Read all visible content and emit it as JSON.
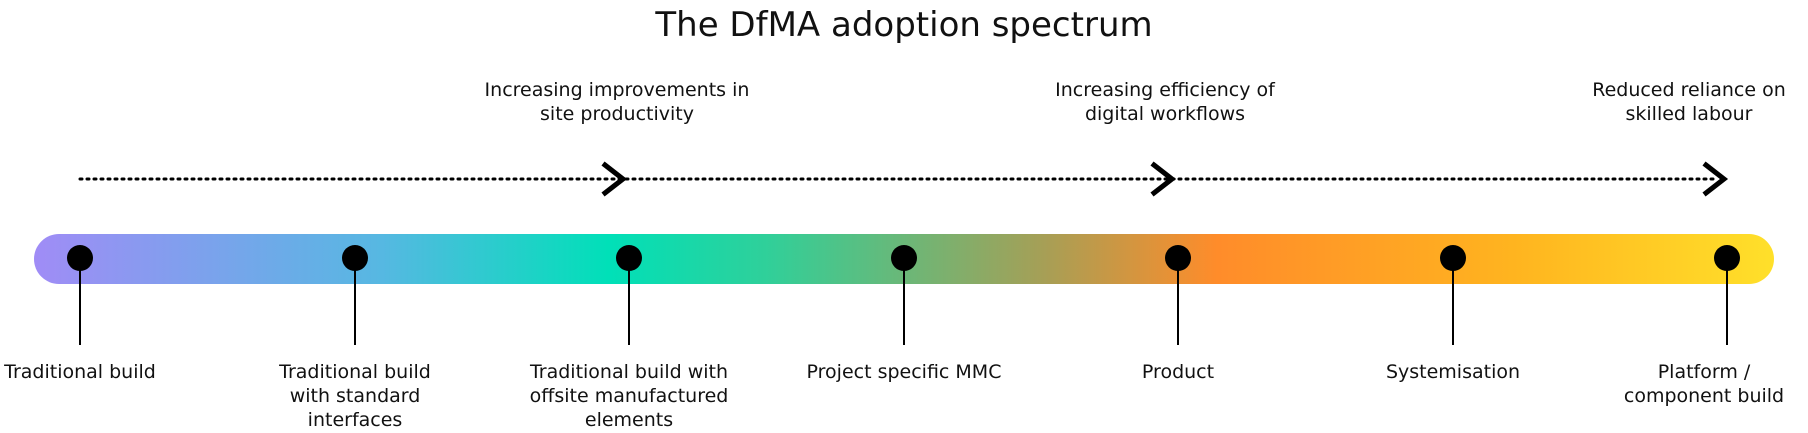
{
  "title": "The DfMA adoption spectrum",
  "annotations": [
    {
      "text_line1": "Increasing improvements in",
      "text_line2": "site productivity"
    },
    {
      "text_line1": "Increasing efficiency of",
      "text_line2": "digital workflows"
    },
    {
      "text_line1": "Reduced reliance on",
      "text_line2": "skilled labour"
    }
  ],
  "stages": [
    {
      "line1": "Traditional build",
      "line2": "",
      "line3": ""
    },
    {
      "line1": "Traditional build",
      "line2": "with standard",
      "line3": "interfaces"
    },
    {
      "line1": "Traditional build with",
      "line2": "offsite manufactured",
      "line3": "elements"
    },
    {
      "line1": "Project specific MMC",
      "line2": "",
      "line3": ""
    },
    {
      "line1": "Product",
      "line2": "",
      "line3": ""
    },
    {
      "line1": "Systemisation",
      "line2": "",
      "line3": ""
    },
    {
      "line1": "Platform /",
      "line2": "component build",
      "line3": ""
    }
  ],
  "colors": {
    "gradient_start": "#a08cf6",
    "gradient_teal": "#00e0b8",
    "gradient_orange": "#ff8c2a",
    "gradient_end": "#ffe02a",
    "marker": "#000000",
    "text": "#111111"
  }
}
